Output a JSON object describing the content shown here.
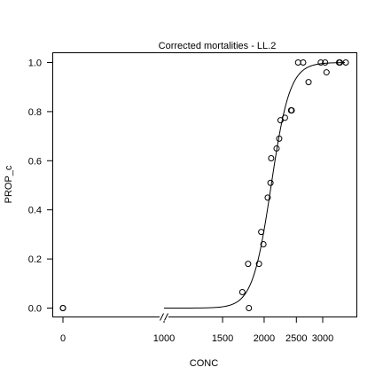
{
  "chart_data": {
    "type": "scatter",
    "title": "Corrected mortalities - LL.2",
    "xlabel": "CONC",
    "ylabel": "PROP_c",
    "x_scale": "log",
    "x_axis_break": true,
    "xlim": [
      1000,
      3600
    ],
    "ylim": [
      0,
      1
    ],
    "x_ticks": [
      0,
      1000,
      1500,
      2000,
      2500,
      3000
    ],
    "x_tick_labels": [
      "0",
      "1000",
      "1500",
      "2000",
      "2500",
      "3000"
    ],
    "y_ticks": [
      0.0,
      0.2,
      0.4,
      0.6,
      0.8,
      1.0
    ],
    "y_tick_labels": [
      "0.0",
      "0.2",
      "0.4",
      "0.6",
      "0.8",
      "1.0"
    ],
    "grid": false,
    "points": [
      {
        "x": 0,
        "y": 0.0
      },
      {
        "x": 0,
        "y": 0.0
      },
      {
        "x": 1720,
        "y": 0.065
      },
      {
        "x": 1790,
        "y": 0.18
      },
      {
        "x": 1800,
        "y": 0.0
      },
      {
        "x": 1930,
        "y": 0.18
      },
      {
        "x": 1960,
        "y": 0.31
      },
      {
        "x": 1990,
        "y": 0.26
      },
      {
        "x": 2050,
        "y": 0.45
      },
      {
        "x": 2090,
        "y": 0.51
      },
      {
        "x": 2100,
        "y": 0.61
      },
      {
        "x": 2180,
        "y": 0.65
      },
      {
        "x": 2220,
        "y": 0.69
      },
      {
        "x": 2240,
        "y": 0.765
      },
      {
        "x": 2310,
        "y": 0.775
      },
      {
        "x": 2410,
        "y": 0.805
      },
      {
        "x": 2420,
        "y": 0.805
      },
      {
        "x": 2530,
        "y": 1.0
      },
      {
        "x": 2620,
        "y": 1.0
      },
      {
        "x": 2720,
        "y": 0.92
      },
      {
        "x": 2960,
        "y": 1.0
      },
      {
        "x": 3050,
        "y": 1.0
      },
      {
        "x": 3080,
        "y": 0.96
      },
      {
        "x": 3360,
        "y": 1.0
      },
      {
        "x": 3380,
        "y": 1.0
      },
      {
        "x": 3520,
        "y": 1.0
      }
    ],
    "fit": {
      "model": "LL.2",
      "slope": -15.5,
      "ed50": 2100,
      "x_range": [
        1000,
        3500
      ]
    }
  }
}
